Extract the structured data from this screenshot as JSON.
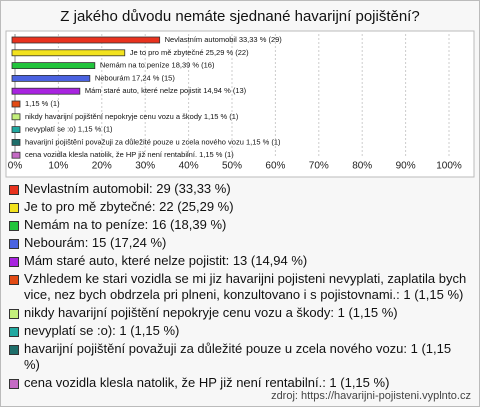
{
  "chart_data": {
    "type": "bar",
    "orientation": "horizontal",
    "title": "Z jakého důvodu nemáte sjednané havarijní pojištění?",
    "categories": [
      "Nevlastním automobil",
      "Je to pro mě zbytečné",
      "Nemám na to peníze",
      "Nebourám",
      "Mám staré auto, které nelze pojistit",
      "Vzhledem ke stari vozidla se mi jiz havarijni pojisteni nevyplati, zaplatila bych vice, nez bych obdrzela pri plneni, konzultovano i s pojistovnami.",
      "nikdy havarijní pojištění nepokryje cenu vozu a škody",
      "nevyplatí se :o)",
      "havarijní pojištění považuji za důležité pouze u zcela nového vozu",
      "cena vozidla klesla natolik, že HP již není rentabilní."
    ],
    "values": [
      33.33,
      25.29,
      18.39,
      17.24,
      14.94,
      1.15,
      1.15,
      1.15,
      1.15,
      1.15
    ],
    "value_labels": [
      "Nevlastním automobil 33,33 % (29)",
      "Je to pro mě zbytečné 25,29 % (22)",
      "Nemám na to peníze 18,39 % (16)",
      "Nebourám 17,24 % (15)",
      "Mám staré auto, které nelze pojistit 14,94 % (13)",
      "1,15 % (1)",
      "nikdy havarijní pojištění nepokryje cenu vozu a škody 1,15 % (1)",
      "nevyplatí se :o) 1,15 % (1)",
      "havarijní pojištění považuji za důležité pouze u zcela nového vozu 1,15 % (1)",
      "cena vozidla klesla natolik, že HP již není rentabilní. 1,15 % (1)"
    ],
    "colors": [
      "#e8321e",
      "#f2e21e",
      "#22c43c",
      "#4a62e0",
      "#a824e0",
      "#e24a14",
      "#c4f07c",
      "#20a8a0",
      "#1e6e6a",
      "#c46ac4"
    ],
    "legend": [
      "Nevlastním automobil: 29 (33,33 %)",
      "Je to pro mě zbytečné: 22 (25,29 %)",
      "Nemám na to peníze: 16 (18,39 %)",
      "Nebourám: 15 (17,24 %)",
      "Mám staré auto, které nelze pojistit: 13 (14,94 %)",
      "Vzhledem ke stari vozidla se mi jiz havarijni pojisteni nevyplati, zaplatila bych vice, nez bych obdrzela pri plneni, konzultovano i s pojistovnami.: 1 (1,15 %)",
      "nikdy havarijní pojištění nepokryje cenu vozu a škody: 1 (1,15 %)",
      "nevyplatí se :o): 1 (1,15 %)",
      "havarijní pojištění považuji za důležité pouze u zcela nového vozu: 1 (1,15 %)",
      "cena vozidla klesla natolik, že HP již není rentabilní.: 1 (1,15 %)"
    ],
    "xlim": [
      0,
      100
    ],
    "xticks": [
      {
        "value": 0,
        "label": "0%"
      },
      {
        "value": 10,
        "label": "10%"
      },
      {
        "value": 20,
        "label": "20%"
      },
      {
        "value": 30,
        "label": "30%"
      },
      {
        "value": 40,
        "label": "40%"
      },
      {
        "value": 50,
        "label": "50%"
      },
      {
        "value": 60,
        "label": "60%"
      },
      {
        "value": 70,
        "label": "70%"
      },
      {
        "value": 80,
        "label": "80%"
      },
      {
        "value": 90,
        "label": "90%"
      },
      {
        "value": 100,
        "label": "100%"
      }
    ],
    "grid": true,
    "source": "zdroj: https://havarijni-pojisteni.vyplnto.cz"
  }
}
